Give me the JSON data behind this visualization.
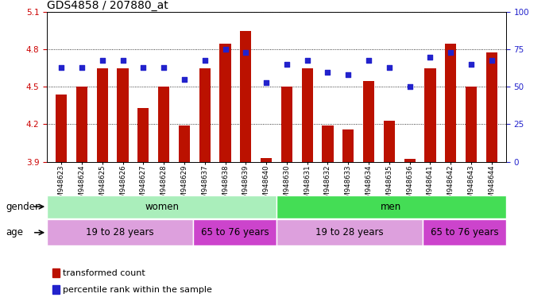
{
  "title": "GDS4858 / 207880_at",
  "samples": [
    "GSM948623",
    "GSM948624",
    "GSM948625",
    "GSM948626",
    "GSM948627",
    "GSM948628",
    "GSM948629",
    "GSM948637",
    "GSM948638",
    "GSM948639",
    "GSM948640",
    "GSM948630",
    "GSM948631",
    "GSM948632",
    "GSM948633",
    "GSM948634",
    "GSM948635",
    "GSM948636",
    "GSM948641",
    "GSM948642",
    "GSM948643",
    "GSM948644"
  ],
  "transformed_count": [
    4.44,
    4.5,
    4.65,
    4.65,
    4.33,
    4.5,
    4.19,
    4.65,
    4.85,
    4.95,
    3.93,
    4.5,
    4.65,
    4.19,
    4.16,
    4.55,
    4.23,
    3.92,
    4.65,
    4.85,
    4.5,
    4.78
  ],
  "percentile_rank": [
    63,
    63,
    68,
    68,
    63,
    63,
    55,
    68,
    75,
    73,
    53,
    65,
    68,
    60,
    58,
    68,
    63,
    50,
    70,
    73,
    65,
    68
  ],
  "ylim_left": [
    3.9,
    5.1
  ],
  "ylim_right": [
    0,
    100
  ],
  "yticks_left": [
    3.9,
    4.2,
    4.5,
    4.8,
    5.1
  ],
  "yticks_right": [
    0,
    25,
    50,
    75,
    100
  ],
  "bar_color": "#bb1100",
  "dot_color": "#2222cc",
  "bar_width": 0.55,
  "gender_groups": [
    {
      "label": "women",
      "start": 0,
      "end": 11,
      "color": "#aaeebb"
    },
    {
      "label": "men",
      "start": 11,
      "end": 22,
      "color": "#44dd55"
    }
  ],
  "age_groups": [
    {
      "label": "19 to 28 years",
      "start": 0,
      "end": 7,
      "color": "#dda0dd"
    },
    {
      "label": "65 to 76 years",
      "start": 7,
      "end": 11,
      "color": "#cc44cc"
    },
    {
      "label": "19 to 28 years",
      "start": 11,
      "end": 18,
      "color": "#dda0dd"
    },
    {
      "label": "65 to 76 years",
      "start": 18,
      "end": 22,
      "color": "#cc44cc"
    }
  ],
  "legend_items": [
    {
      "label": "transformed count",
      "color": "#bb1100"
    },
    {
      "label": "percentile rank within the sample",
      "color": "#2222cc"
    }
  ],
  "bg_color": "#ffffff",
  "title_fontsize": 10,
  "tick_color_left": "#cc0000",
  "tick_color_right": "#2222cc"
}
